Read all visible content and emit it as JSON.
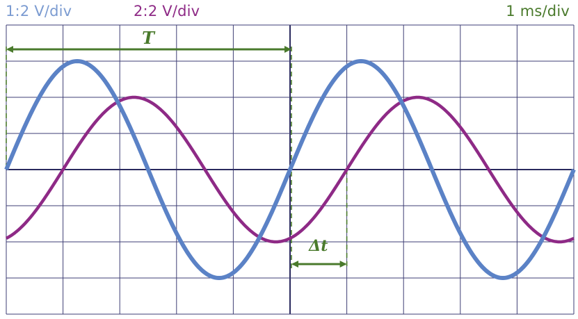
{
  "header": {
    "ch1_label": "1:2 V/div",
    "ch2_label": "2:2 V/div",
    "timebase_label": "1 ms/div"
  },
  "annotations": {
    "period_label": "T",
    "delta_label": "Δt"
  },
  "colors": {
    "grid": "#3e3e74",
    "axis": "#2a2a5e",
    "ch1": "#5b82c6",
    "ch1_text": "#7b9bd1",
    "ch2": "#8e2a86",
    "ch2_text": "#8e2a86",
    "annotation": "#4a7a2c",
    "background": "#ffffff"
  },
  "channels": [
    {
      "name": "1",
      "amplitude_div": 3.0,
      "period_div": 5.0,
      "phase_div": 0.0
    },
    {
      "name": "2",
      "amplitude_div": 2.0,
      "period_div": 5.0,
      "phase_div": 1.0
    }
  ],
  "grid": {
    "divisions_x": 10,
    "divisions_y": 8
  },
  "markers": {
    "period_div": 5.0,
    "delta_t_div": 1.0
  }
}
